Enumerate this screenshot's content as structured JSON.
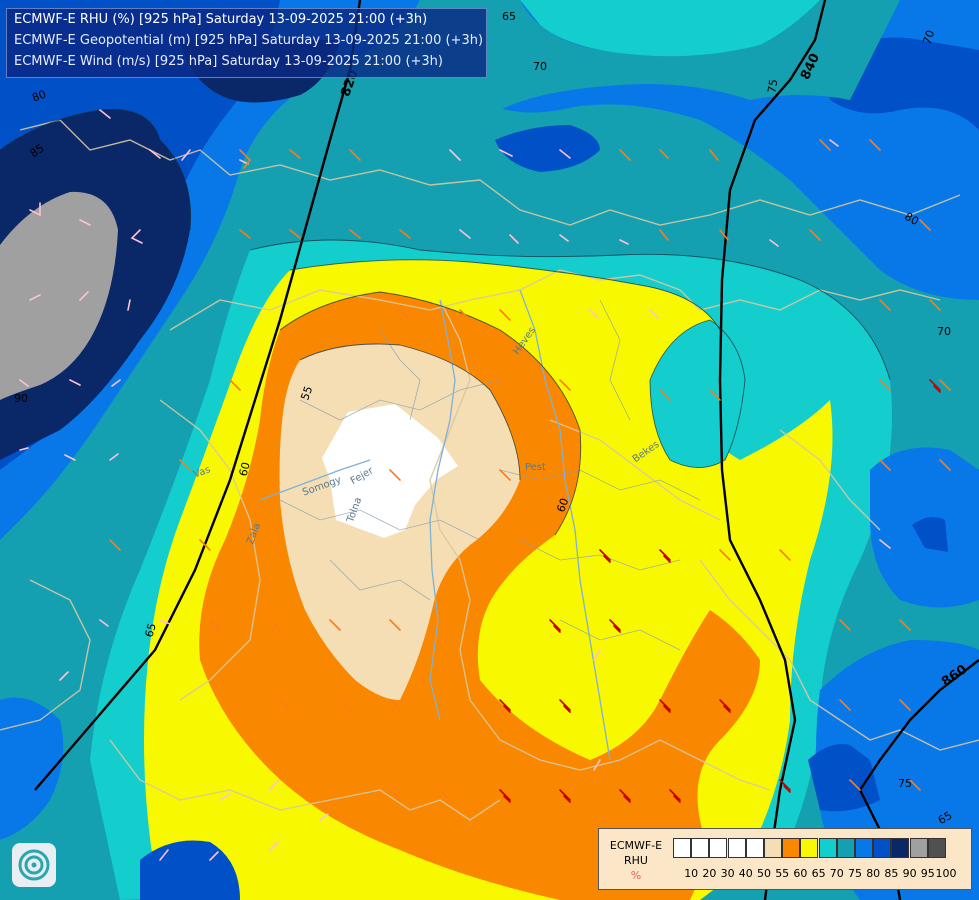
{
  "title": {
    "line1": "ECMWF-E RHU (%) [925 hPa] Saturday 13-09-2025 21:00 (+3h)",
    "line2": "ECMWF-E Geopotential (m) [925 hPa] Saturday 13-09-2025 21:00 (+3h)",
    "line3": "ECMWF-E Wind (m/s) [925 hPa] Saturday 13-09-2025 21:00 (+3h)"
  },
  "legend": {
    "line1": "ECMWF-E",
    "line2": "RHU",
    "unit": "%",
    "ticks": [
      "10",
      "20",
      "30",
      "40",
      "50",
      "55",
      "60",
      "65",
      "70",
      "75",
      "80",
      "85",
      "90",
      "95",
      "100"
    ],
    "colors": [
      "#ffffff",
      "#ffffff",
      "#ffffff",
      "#ffffff",
      "#ffffff",
      "#f5deb3",
      "#f98700",
      "#f8f800",
      "#14cdcd",
      "#14a0b0",
      "#0878e8",
      "#0050c8",
      "#0a2868",
      "#a0a0a0",
      "#505050"
    ]
  },
  "map_labels": {
    "iso_55": "55",
    "iso_60": "60",
    "iso_60b": "60",
    "iso_65": "65",
    "iso_65b": "65",
    "iso_65c": "65",
    "iso_70": "70",
    "iso_70b": "70",
    "iso_70c": "70",
    "iso_75": "75",
    "iso_75b": "75",
    "iso_80": "80",
    "iso_80b": "80",
    "iso_85": "85",
    "iso_90": "90",
    "geo_820": "820",
    "geo_840": "840",
    "geo_860": "860",
    "city_pest": "Pest",
    "place_bekes": "Bekes",
    "place_feher": "Fejer",
    "place_tolna": "Tolna",
    "place_somogy": "Somogy",
    "place_vas": "Vas",
    "place_zala": "Zala",
    "place_heves": "Heves"
  },
  "colors": {
    "rh_100": "#505050",
    "rh_95": "#a0a0a0",
    "rh_90": "#0a2868",
    "rh_85": "#0050c8",
    "rh_80": "#0878e8",
    "rh_75": "#14a0b0",
    "rh_70": "#14cdcd",
    "rh_65": "#f8f800",
    "rh_60": "#f98700",
    "rh_55": "#f5deb3",
    "rh_50": "#ffffff",
    "geopotential_line": "#000000",
    "border": "#d8c8a0",
    "river": "#7fb0d8",
    "wind_light": "#ffc0d8",
    "wind_mid": "#ff7a1a",
    "wind_strong": "#c80000"
  }
}
